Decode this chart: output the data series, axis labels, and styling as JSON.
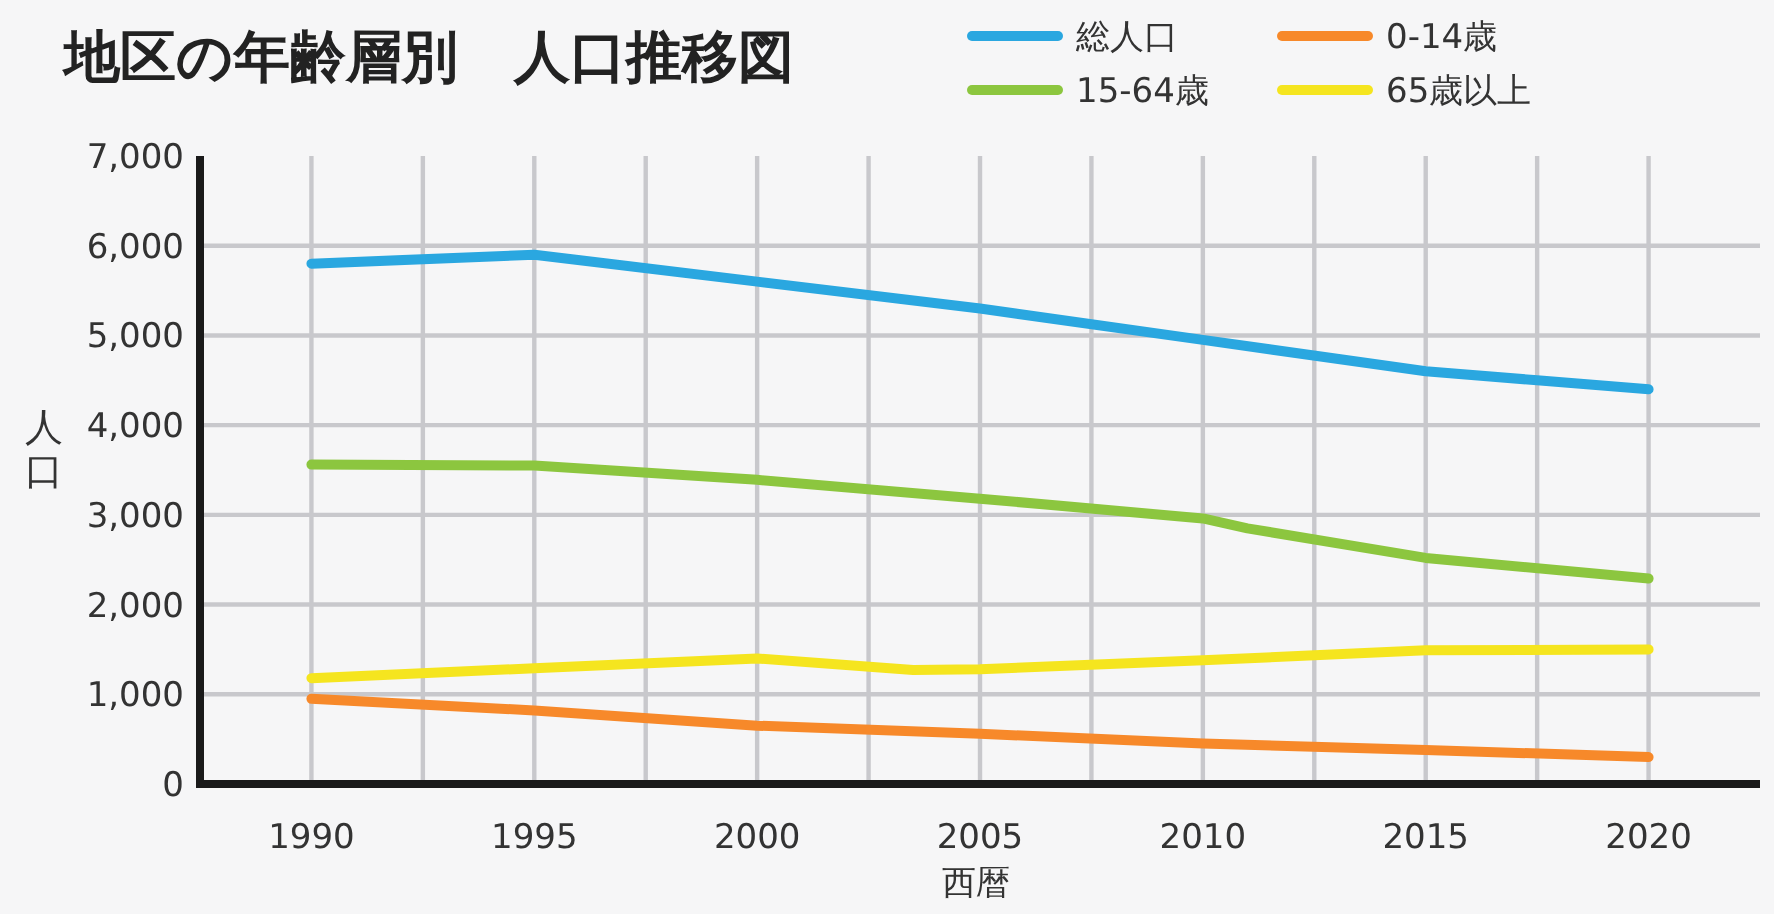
{
  "chart_data": {
    "type": "line",
    "title": "地区の年齢層別　人口推移図",
    "xlabel": "西暦",
    "ylabel": "人口",
    "xlim": [
      1987.5,
      2022.5
    ],
    "xticks": [
      {
        "value": 1990,
        "label": "1990"
      },
      {
        "value": 1992.5,
        "label": null
      },
      {
        "value": 1995,
        "label": "1995"
      },
      {
        "value": 1997.5,
        "label": null
      },
      {
        "value": 2000,
        "label": "2000"
      },
      {
        "value": 2002.5,
        "label": null
      },
      {
        "value": 2005,
        "label": "2005"
      },
      {
        "value": 2007.5,
        "label": null
      },
      {
        "value": 2010,
        "label": "2010"
      },
      {
        "value": 2012.5,
        "label": null
      },
      {
        "value": 2015,
        "label": "2015"
      },
      {
        "value": 2017.5,
        "label": null
      },
      {
        "value": 2020,
        "label": "2020"
      }
    ],
    "ylim": [
      0,
      7000
    ],
    "yticks": [
      0,
      {
        "value": 1000,
        "label": "1,000"
      },
      {
        "value": 2000,
        "label": "2,000"
      },
      {
        "value": 3000,
        "label": "3,000"
      },
      {
        "value": 4000,
        "label": "4,000"
      },
      {
        "value": 5000,
        "label": "5,000"
      },
      {
        "value": 6000,
        "label": "6,000"
      },
      {
        "value": 7000,
        "label": "7,000"
      }
    ],
    "grid": true,
    "legend": "top right",
    "marker": "none",
    "line_style": "solid",
    "series": [
      {
        "name": "総人口",
        "color": "#2aa7e0",
        "x": [
          1990,
          1995,
          2000,
          2005,
          2010,
          2015,
          2017.5,
          2020
        ],
        "values": [
          5800,
          5900,
          5600,
          5300,
          4950,
          4600,
          4500,
          4400
        ]
      },
      {
        "name": "0-14歳",
        "color": "#f7892a",
        "x": [
          1990,
          1995,
          2000,
          2005,
          2010,
          2015,
          2020
        ],
        "values": [
          950,
          820,
          650,
          560,
          450,
          380,
          300
        ]
      },
      {
        "name": "15-64歳",
        "color": "#8cc63f",
        "x": [
          1990,
          1995,
          2000,
          2005,
          2010,
          2011,
          2015,
          2020
        ],
        "values": [
          3560,
          3550,
          3390,
          3180,
          2960,
          2850,
          2520,
          2290
        ]
      },
      {
        "name": "65歳以上",
        "color": "#f5e51f",
        "x": [
          1990,
          1995,
          2000,
          2003.5,
          2005,
          2010,
          2015,
          2020
        ],
        "values": [
          1180,
          1290,
          1400,
          1270,
          1280,
          1380,
          1490,
          1500
        ]
      }
    ]
  }
}
